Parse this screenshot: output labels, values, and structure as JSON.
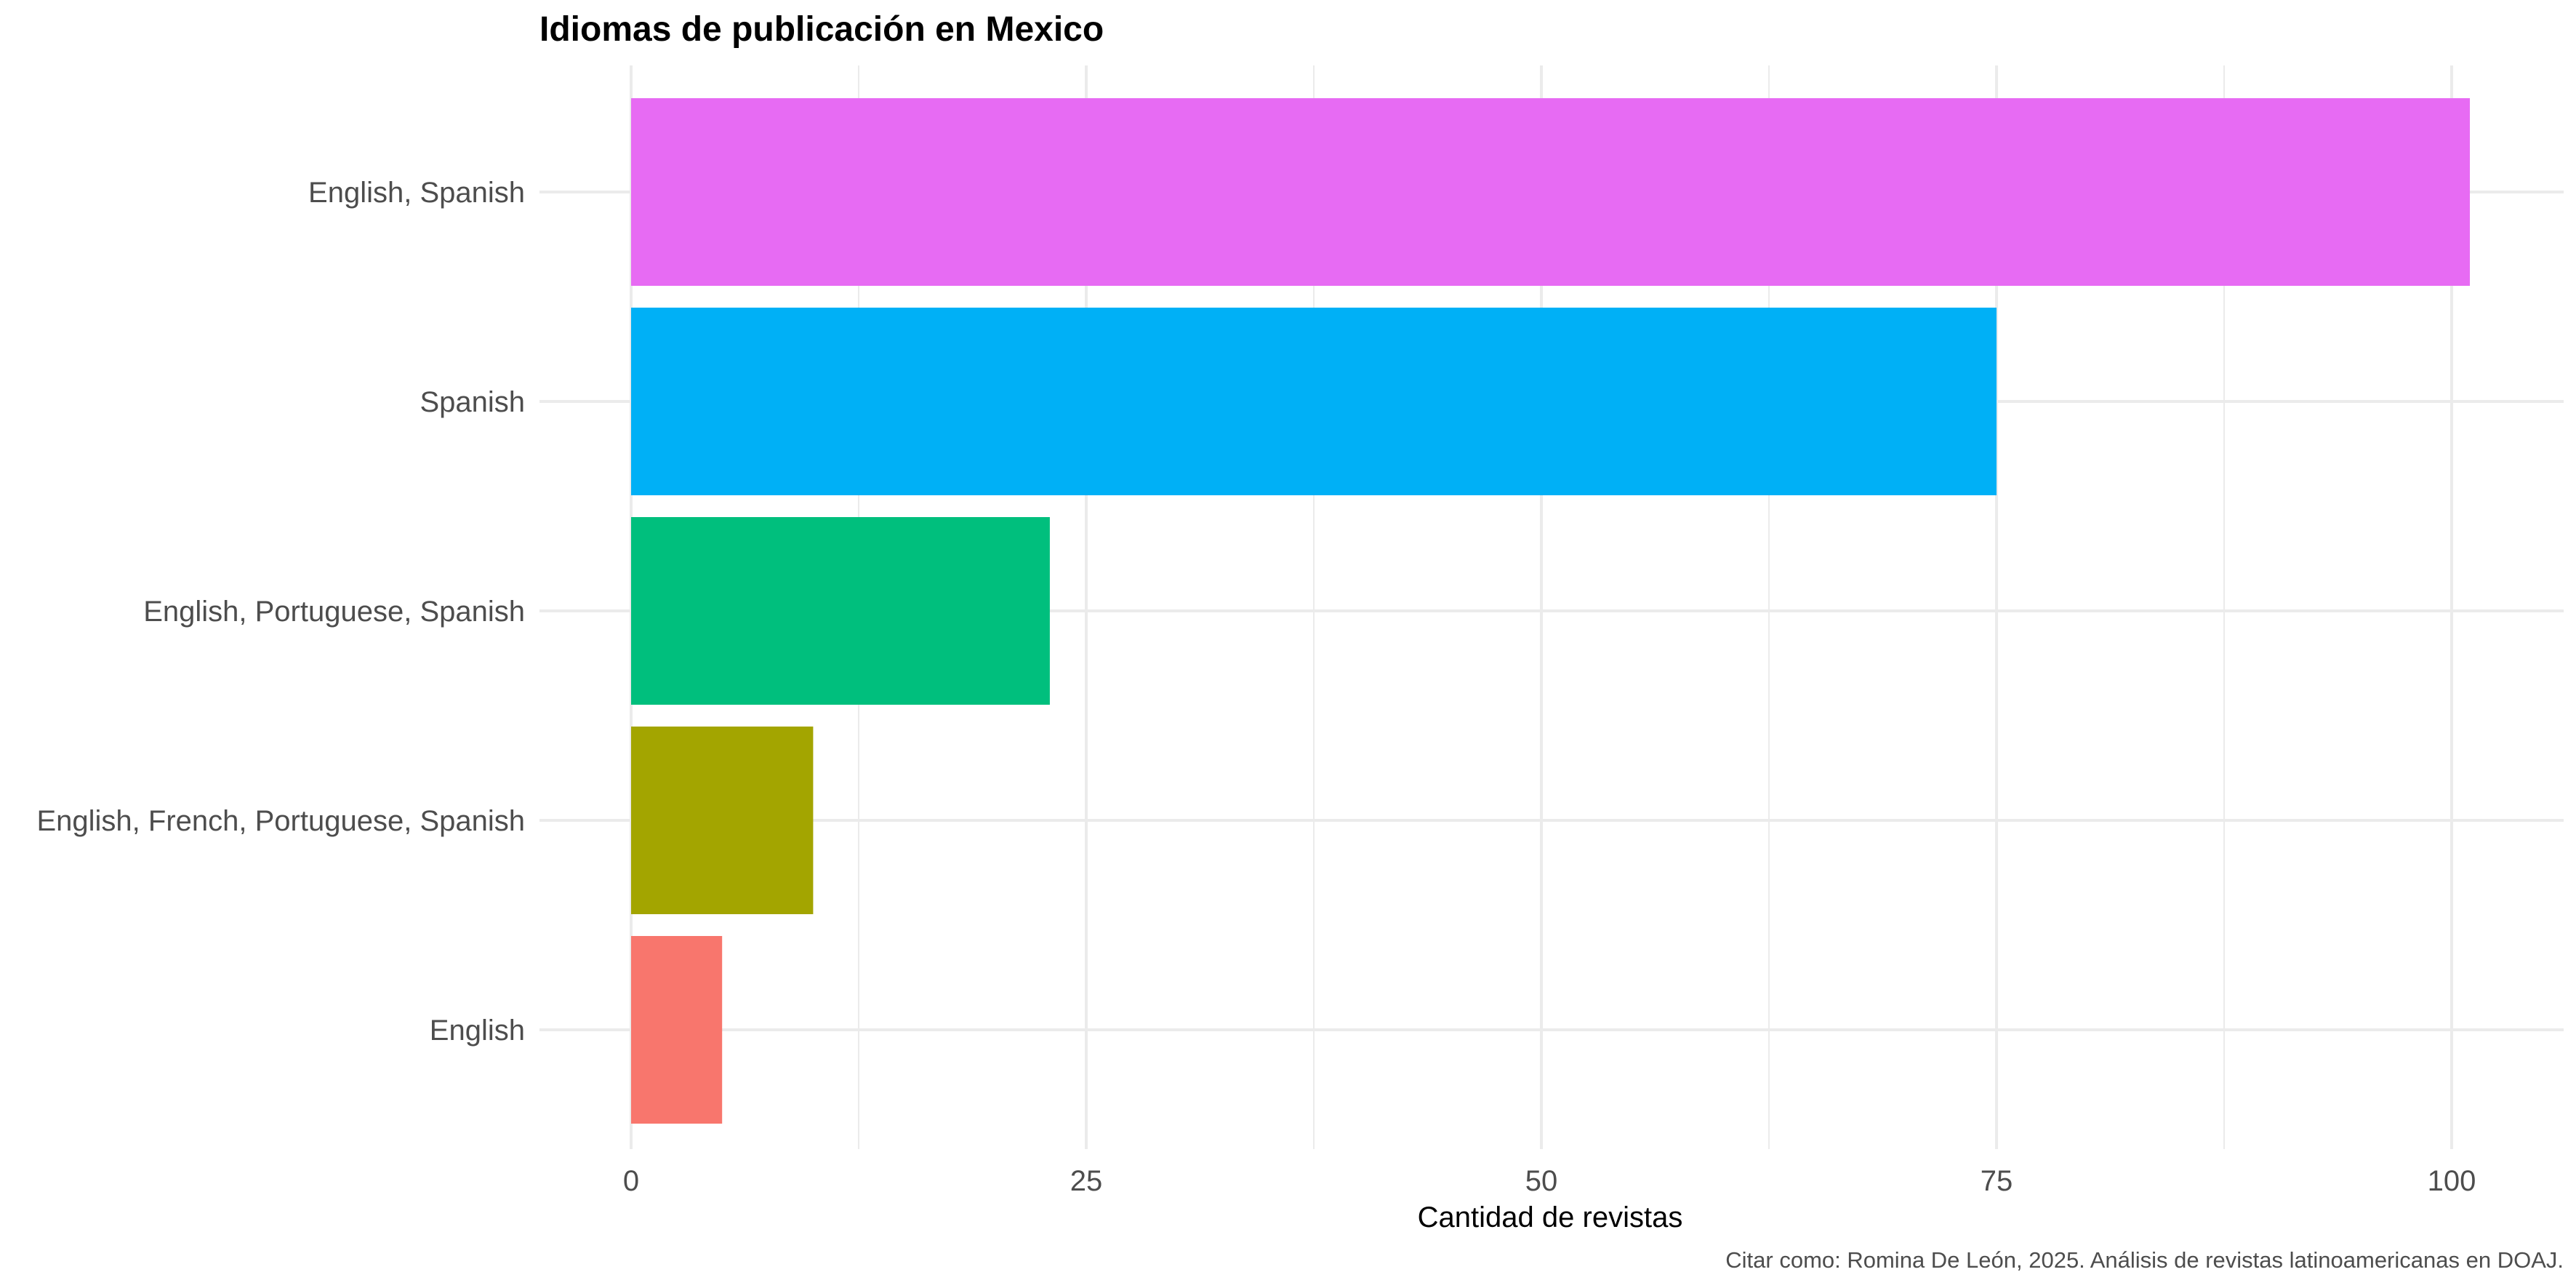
{
  "chart_data": {
    "type": "bar",
    "orientation": "horizontal",
    "title": "Idiomas de publicación en Mexico",
    "xlabel": "Cantidad de revistas",
    "ylabel": "",
    "caption": "Citar como: Romina De León, 2025. Análisis de revistas latinoamericanas en DOAJ.",
    "categories": [
      "English, Spanish",
      "Spanish",
      "English, Portuguese, Spanish",
      "English, French, Portuguese, Spanish",
      "English"
    ],
    "values": [
      101,
      75,
      23,
      10,
      5
    ],
    "colors": [
      "#E76BF3",
      "#00B0F6",
      "#00BF7D",
      "#A3A500",
      "#F8766D"
    ],
    "xlim": [
      0,
      106
    ],
    "x_ticks": [
      0,
      25,
      50,
      75,
      100
    ],
    "x_tick_labels": [
      "0",
      "25",
      "50",
      "75",
      "100"
    ],
    "x_minor_ticks": [
      12.5,
      37.5,
      62.5,
      87.5
    ],
    "grid": true,
    "legend": "none"
  }
}
